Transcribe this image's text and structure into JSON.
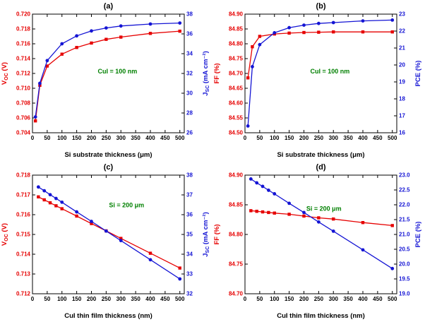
{
  "figure": {
    "background": "#ffffff",
    "colors": {
      "left_series": "#e60000",
      "right_series": "#1414d4",
      "annotation": "#008000",
      "axis": "#000000"
    }
  },
  "chart_data": [
    {
      "id": "a",
      "type": "line",
      "title": "(a)",
      "xlabel": "Si substrate thickness (μm)",
      "xlim": [
        0,
        515
      ],
      "x_ticks": [
        0,
        50,
        100,
        150,
        200,
        250,
        300,
        350,
        400,
        450,
        500
      ],
      "x_decimals": 0,
      "left_axis": {
        "label": "V_{OC} (V)",
        "lim": [
          0.704,
          0.72
        ],
        "ticks": [
          0.704,
          0.706,
          0.708,
          0.71,
          0.712,
          0.714,
          0.716,
          0.718,
          0.72
        ],
        "decimals": 3
      },
      "right_axis": {
        "label": "J_{SC} (mA cm⁻²)",
        "lim": [
          26,
          38
        ],
        "ticks": [
          26,
          28,
          30,
          32,
          34,
          36,
          38
        ],
        "decimals": 0
      },
      "annotation": {
        "text": "CuI = 100 nm",
        "x": 0.56,
        "y": 0.5
      },
      "x": [
        10,
        25,
        50,
        100,
        150,
        200,
        250,
        300,
        400,
        500
      ],
      "series": [
        {
          "name": "V_OC",
          "axis": "left",
          "marker": "square",
          "values": [
            0.7056,
            0.7104,
            0.713,
            0.7146,
            0.7155,
            0.7161,
            0.7166,
            0.7169,
            0.7174,
            0.7177
          ]
        },
        {
          "name": "J_SC",
          "axis": "right",
          "marker": "circle",
          "values": [
            27.6,
            31.0,
            33.3,
            35.0,
            35.8,
            36.3,
            36.6,
            36.8,
            37.0,
            37.1
          ]
        }
      ]
    },
    {
      "id": "b",
      "type": "line",
      "title": "(b)",
      "xlabel": "Si substrate thickness (μm)",
      "xlim": [
        0,
        515
      ],
      "x_ticks": [
        0,
        50,
        100,
        150,
        200,
        250,
        300,
        350,
        400,
        450,
        500
      ],
      "x_decimals": 0,
      "left_axis": {
        "label": "FF (%)",
        "lim": [
          84.5,
          84.9
        ],
        "ticks": [
          84.5,
          84.55,
          84.6,
          84.65,
          84.7,
          84.75,
          84.8,
          84.85,
          84.9
        ],
        "decimals": 2
      },
      "right_axis": {
        "label": "PCE (%)",
        "lim": [
          16,
          23
        ],
        "ticks": [
          16,
          17,
          18,
          19,
          20,
          21,
          22,
          23
        ],
        "decimals": 0
      },
      "annotation": {
        "text": "CuI = 100 nm",
        "x": 0.56,
        "y": 0.5
      },
      "x": [
        10,
        25,
        50,
        100,
        150,
        200,
        250,
        300,
        400,
        500
      ],
      "series": [
        {
          "name": "FF",
          "axis": "left",
          "marker": "square",
          "values": [
            84.685,
            84.79,
            84.825,
            84.833,
            84.836,
            84.838,
            84.839,
            84.84,
            84.84,
            84.84
          ]
        },
        {
          "name": "PCE",
          "axis": "right",
          "marker": "circle",
          "values": [
            16.4,
            19.9,
            21.2,
            21.9,
            22.2,
            22.35,
            22.45,
            22.5,
            22.6,
            22.65
          ]
        }
      ]
    },
    {
      "id": "c",
      "type": "line",
      "title": "(c)",
      "xlabel": "CuI thin film thickness (nm)",
      "xlim": [
        0,
        515
      ],
      "x_ticks": [
        0,
        50,
        100,
        150,
        200,
        250,
        300,
        350,
        400,
        450,
        500
      ],
      "x_decimals": 0,
      "left_axis": {
        "label": "V_{OC} (V)",
        "lim": [
          0.712,
          0.718
        ],
        "ticks": [
          0.712,
          0.713,
          0.714,
          0.715,
          0.716,
          0.717,
          0.718
        ],
        "decimals": 3
      },
      "right_axis": {
        "label": "J_{SC} (mA cm⁻²)",
        "lim": [
          32,
          38
        ],
        "ticks": [
          32,
          33,
          34,
          35,
          36,
          37,
          38
        ],
        "decimals": 0
      },
      "annotation": {
        "text": "Si = 200 μm",
        "x": 0.62,
        "y": 0.27
      },
      "x": [
        20,
        40,
        60,
        80,
        100,
        150,
        200,
        250,
        300,
        400,
        500
      ],
      "series": [
        {
          "name": "V_OC",
          "axis": "left",
          "marker": "square",
          "values": [
            0.7169,
            0.71675,
            0.7166,
            0.71645,
            0.7163,
            0.71593,
            0.71555,
            0.71518,
            0.7148,
            0.71405,
            0.7133
          ]
        },
        {
          "name": "J_SC",
          "axis": "right",
          "marker": "circle",
          "values": [
            37.4,
            37.21,
            37.01,
            36.82,
            36.63,
            36.14,
            35.66,
            35.17,
            34.69,
            33.72,
            32.75
          ]
        }
      ]
    },
    {
      "id": "d",
      "type": "line",
      "title": "(d)",
      "xlabel": "CuI thin film thickness (nm)",
      "xlim": [
        0,
        515
      ],
      "x_ticks": [
        0,
        50,
        100,
        150,
        200,
        250,
        300,
        350,
        400,
        450,
        500
      ],
      "x_decimals": 0,
      "left_axis": {
        "label": "FF (%)",
        "lim": [
          84.7,
          84.9
        ],
        "ticks": [
          84.7,
          84.75,
          84.8,
          84.85,
          84.9
        ],
        "decimals": 2
      },
      "right_axis": {
        "label": "PCE (%)",
        "lim": [
          19.0,
          23.0
        ],
        "ticks": [
          19.0,
          19.5,
          20.0,
          20.5,
          21.0,
          21.5,
          22.0,
          22.5,
          23.0
        ],
        "decimals": 1
      },
      "annotation": {
        "text": "Si = 200 μm",
        "x": 0.52,
        "y": 0.3
      },
      "x": [
        20,
        40,
        60,
        80,
        100,
        150,
        200,
        250,
        300,
        400,
        500
      ],
      "series": [
        {
          "name": "FF",
          "axis": "left",
          "marker": "square",
          "values": [
            84.84,
            84.839,
            84.838,
            84.837,
            84.836,
            84.834,
            84.831,
            84.828,
            84.826,
            84.82,
            84.815
          ]
        },
        {
          "name": "PCE",
          "axis": "right",
          "marker": "circle",
          "values": [
            22.87,
            22.74,
            22.62,
            22.49,
            22.37,
            22.05,
            21.74,
            21.42,
            21.11,
            20.48,
            19.85
          ]
        }
      ]
    }
  ]
}
